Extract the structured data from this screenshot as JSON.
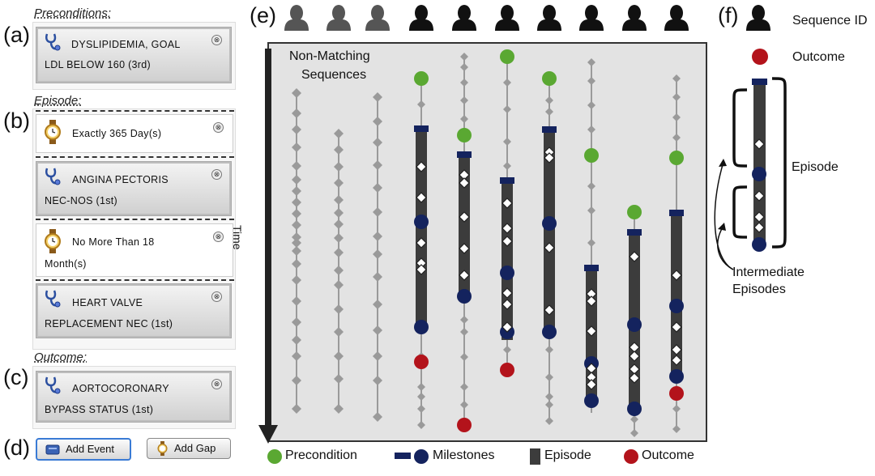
{
  "panel_letters": {
    "a": "(a)",
    "b": "(b)",
    "c": "(c)",
    "d": "(d)",
    "e": "(e)",
    "f": "(f)"
  },
  "query": {
    "preconditions_title": "Preconditions:",
    "episode_title": "Episode:",
    "outcome_title": "Outcome:",
    "precondition_card": {
      "line1": "DYSLIPIDEMIA, GOAL",
      "line2": "LDL BELOW 160 (3rd)",
      "icon": "stethoscope-icon"
    },
    "gap1": {
      "line1": "Exactly 365 Day(s)",
      "icon": "watch-icon"
    },
    "event1": {
      "line1": "ANGINA PECTORIS",
      "line2": "NEC-NOS (1st)",
      "icon": "stethoscope-icon"
    },
    "gap2": {
      "line1": "No More Than 18",
      "line2": "Month(s)",
      "icon": "watch-icon"
    },
    "event2": {
      "line1": "HEART VALVE",
      "line2": "REPLACEMENT NEC (1st)",
      "icon": "stethoscope-icon"
    },
    "outcome_card": {
      "line1": "AORTOCORONARY",
      "line2": "BYPASS STATUS (1st)",
      "icon": "stethoscope-icon"
    },
    "remove_glyph": "⊗",
    "add_event_label": "Add Event",
    "add_gap_label": "Add Gap"
  },
  "main_view": {
    "non_matching_label_1": "Non-Matching",
    "non_matching_label_2": "Sequences",
    "time_label": "Time"
  },
  "legend": {
    "precondition": "Precondition",
    "milestones": "Milestones",
    "episode": "Episode",
    "outcome": "Outcome"
  },
  "key": {
    "sequence_id": "Sequence ID",
    "outcome": "Outcome",
    "episode": "Episode",
    "intermediate_1": "Intermediate",
    "intermediate_2": "Episodes"
  },
  "colors": {
    "precondition": "#5aa832",
    "milestone": "#14235e",
    "episode_bar": "#3c3c3c",
    "outcome": "#b3131b",
    "nonmatching": "#9a9a9a",
    "panel_bg": "#e3e3e3"
  }
}
